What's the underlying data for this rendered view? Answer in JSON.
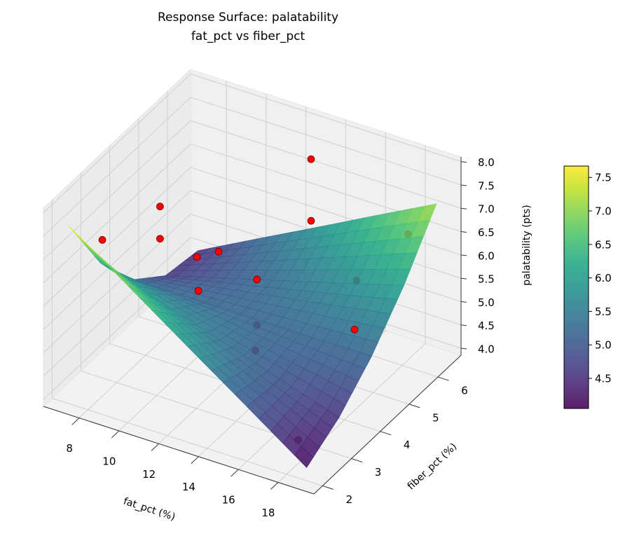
{
  "chart_data": {
    "type": "surface3d",
    "title": "Response Surface: palatability",
    "subtitle": "fat_pct vs fiber_pct",
    "xlabel": "fat_pct (%)",
    "ylabel": "fiber_pct (%)",
    "zlabel": "palatability (pts)",
    "xlim": [
      6.2,
      19.8
    ],
    "ylim": [
      1.7,
      6.8
    ],
    "zlim": [
      3.85,
      8.1
    ],
    "xticks": [
      8,
      10,
      12,
      14,
      16,
      18
    ],
    "yticks": [
      2,
      3,
      4,
      5,
      6
    ],
    "zticks": [
      {
        "value": 4,
        "label": "4.0"
      },
      4.5,
      {
        "value": 5,
        "label": "5.0"
      },
      5.5,
      {
        "value": 6,
        "label": "6.0"
      },
      6.5,
      {
        "value": 7,
        "label": "7.0"
      },
      7.5,
      {
        "value": 8,
        "label": "8.0"
      }
    ],
    "grid": true,
    "surface": {
      "colormap": "viridis",
      "x": [
        7,
        10,
        13,
        16,
        19
      ],
      "y": [
        2,
        3.125,
        4.25,
        5.375,
        6.5
      ],
      "z": [
        [
          7.67,
          6.79,
          5.9,
          5.02,
          4.13
        ],
        [
          6.2,
          5.79,
          5.38,
          4.96,
          4.55
        ],
        [
          5.19,
          5.19,
          5.19,
          5.19,
          5.2
        ],
        [
          4.62,
          4.98,
          5.34,
          5.7,
          6.07
        ],
        [
          4.5,
          5.17,
          5.83,
          6.5,
          7.16
        ]
      ]
    },
    "scatter": {
      "color": "#ff0000",
      "x": [
        8,
        8,
        8,
        10,
        14,
        14,
        10,
        12,
        10,
        12,
        14,
        16,
        18,
        18,
        18
      ],
      "y": [
        2.5,
        4.5,
        4.5,
        4.4,
        5.6,
        5.6,
        5.15,
        5.1,
        4.45,
        5.1,
        3.67,
        5.8,
        4.35,
        6.2,
        2.4
      ],
      "z": [
        7.2,
        6.75,
        6.06,
        6.0,
        7.95,
        6.63,
        5.68,
        5.39,
        5.25,
        4.41,
        4.98,
        5.51,
        5.58,
        6.55,
        4.35
      ]
    },
    "colorbar": {
      "clim": [
        4.05,
        7.67
      ],
      "ticks": [
        4.5,
        {
          "value": 5,
          "label": "5.0"
        },
        5.5,
        {
          "value": 6,
          "label": "6.0"
        },
        6.5,
        {
          "value": 7,
          "label": "7.0"
        },
        7.5
      ]
    }
  }
}
